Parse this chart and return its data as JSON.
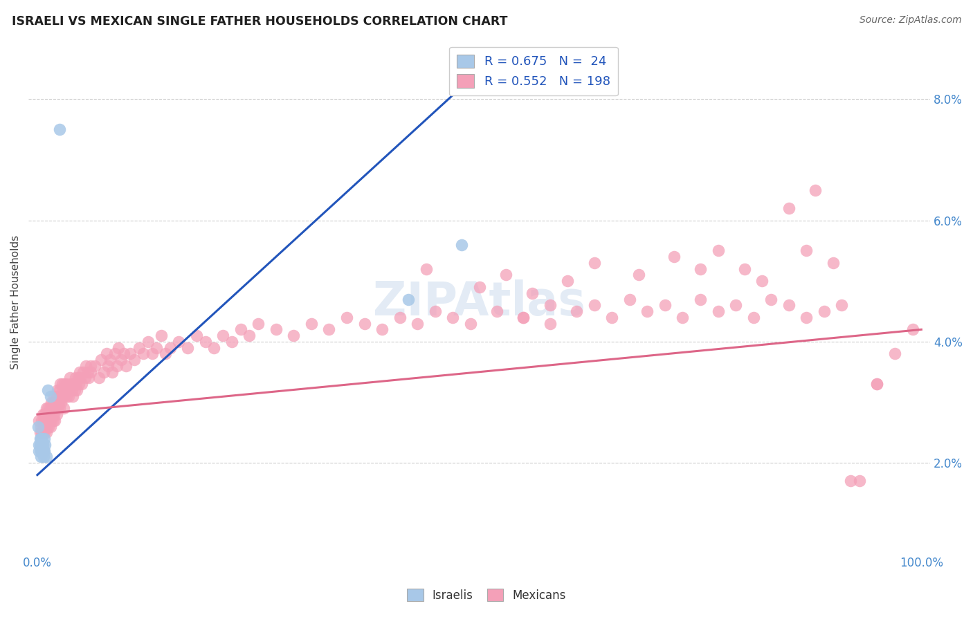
{
  "title": "ISRAELI VS MEXICAN SINGLE FATHER HOUSEHOLDS CORRELATION CHART",
  "source": "Source: ZipAtlas.com",
  "ylabel": "Single Father Households",
  "watermark": "ZIPAtlas",
  "israeli_color": "#a8c8e8",
  "mexican_color": "#f4a0b8",
  "israeli_line_color": "#2255bb",
  "mexican_line_color": "#dd6688",
  "title_color": "#202020",
  "axis_tick_color": "#4488cc",
  "xlim": [
    -0.01,
    1.01
  ],
  "ylim": [
    0.005,
    0.088
  ],
  "ytick_right_vals": [
    0.02,
    0.04,
    0.06,
    0.08
  ],
  "ytick_right_labels": [
    "2.0%",
    "4.0%",
    "6.0%",
    "8.0%"
  ],
  "xtick_vals": [
    0.0,
    0.1,
    0.2,
    0.3,
    0.4,
    0.5,
    0.6,
    0.7,
    0.8,
    0.9,
    1.0
  ],
  "xtick_labels": [
    "0.0%",
    "",
    "",
    "",
    "",
    "",
    "",
    "",
    "",
    "",
    "100.0%"
  ],
  "isr_x": [
    0.001,
    0.002,
    0.002,
    0.003,
    0.003,
    0.004,
    0.004,
    0.004,
    0.005,
    0.005,
    0.005,
    0.006,
    0.006,
    0.007,
    0.007,
    0.008,
    0.008,
    0.009,
    0.01,
    0.012,
    0.015,
    0.025,
    0.42,
    0.48
  ],
  "isr_y": [
    0.026,
    0.023,
    0.022,
    0.024,
    0.023,
    0.024,
    0.022,
    0.021,
    0.024,
    0.023,
    0.022,
    0.023,
    0.022,
    0.022,
    0.021,
    0.024,
    0.022,
    0.023,
    0.021,
    0.032,
    0.031,
    0.075,
    0.047,
    0.056
  ],
  "isr_trend_x": [
    0.0,
    0.48
  ],
  "isr_trend_y": [
    0.018,
    0.082
  ],
  "mex_trend_x": [
    0.0,
    1.0
  ],
  "mex_trend_y": [
    0.028,
    0.042
  ],
  "mex_cluster1_x": [
    0.002,
    0.003,
    0.004,
    0.005,
    0.005,
    0.006,
    0.006,
    0.007,
    0.007,
    0.008,
    0.008,
    0.008,
    0.009,
    0.009,
    0.01,
    0.01,
    0.01,
    0.011,
    0.011,
    0.012,
    0.012,
    0.013,
    0.013,
    0.014,
    0.014,
    0.015,
    0.015,
    0.016,
    0.016,
    0.017,
    0.017,
    0.018,
    0.018,
    0.019,
    0.019,
    0.02,
    0.02,
    0.021,
    0.022,
    0.022,
    0.023,
    0.023,
    0.024,
    0.025,
    0.025,
    0.026,
    0.026,
    0.027,
    0.028,
    0.028,
    0.029,
    0.03,
    0.03,
    0.031,
    0.032,
    0.033,
    0.033,
    0.034,
    0.035,
    0.036,
    0.037,
    0.038,
    0.039,
    0.04,
    0.041,
    0.042,
    0.043,
    0.044,
    0.045,
    0.046,
    0.047,
    0.048,
    0.049,
    0.05,
    0.052,
    0.054,
    0.055,
    0.057,
    0.058,
    0.06
  ],
  "mex_cluster1_y": [
    0.027,
    0.025,
    0.026,
    0.025,
    0.027,
    0.025,
    0.028,
    0.026,
    0.027,
    0.025,
    0.026,
    0.028,
    0.026,
    0.028,
    0.025,
    0.027,
    0.029,
    0.026,
    0.028,
    0.027,
    0.029,
    0.026,
    0.028,
    0.027,
    0.029,
    0.026,
    0.028,
    0.027,
    0.03,
    0.028,
    0.029,
    0.027,
    0.03,
    0.028,
    0.031,
    0.027,
    0.03,
    0.029,
    0.028,
    0.031,
    0.029,
    0.032,
    0.03,
    0.029,
    0.032,
    0.031,
    0.033,
    0.03,
    0.031,
    0.033,
    0.032,
    0.029,
    0.031,
    0.033,
    0.032,
    0.031,
    0.033,
    0.032,
    0.031,
    0.032,
    0.034,
    0.033,
    0.032,
    0.031,
    0.033,
    0.032,
    0.034,
    0.033,
    0.032,
    0.034,
    0.033,
    0.035,
    0.034,
    0.033,
    0.035,
    0.034,
    0.036,
    0.035,
    0.034,
    0.036
  ],
  "mex_cluster2_x": [
    0.06,
    0.065,
    0.07,
    0.072,
    0.075,
    0.078,
    0.08,
    0.082,
    0.085,
    0.088,
    0.09,
    0.092,
    0.095,
    0.098,
    0.1,
    0.105,
    0.11,
    0.115,
    0.12,
    0.125,
    0.13,
    0.135,
    0.14,
    0.145,
    0.15,
    0.16,
    0.17,
    0.18,
    0.19,
    0.2,
    0.21,
    0.22,
    0.23,
    0.24,
    0.25,
    0.27,
    0.29,
    0.31,
    0.33,
    0.35,
    0.37,
    0.39,
    0.41,
    0.43,
    0.45,
    0.47,
    0.49,
    0.52,
    0.55,
    0.58
  ],
  "mex_cluster2_y": [
    0.035,
    0.036,
    0.034,
    0.037,
    0.035,
    0.038,
    0.036,
    0.037,
    0.035,
    0.038,
    0.036,
    0.039,
    0.037,
    0.038,
    0.036,
    0.038,
    0.037,
    0.039,
    0.038,
    0.04,
    0.038,
    0.039,
    0.041,
    0.038,
    0.039,
    0.04,
    0.039,
    0.041,
    0.04,
    0.039,
    0.041,
    0.04,
    0.042,
    0.041,
    0.043,
    0.042,
    0.041,
    0.043,
    0.042,
    0.044,
    0.043,
    0.042,
    0.044,
    0.043,
    0.045,
    0.044,
    0.043,
    0.045,
    0.044,
    0.046
  ],
  "mex_cluster3_x": [
    0.55,
    0.58,
    0.61,
    0.63,
    0.65,
    0.67,
    0.69,
    0.71,
    0.73,
    0.75,
    0.77,
    0.79,
    0.81,
    0.83,
    0.85,
    0.87,
    0.89,
    0.91,
    0.93,
    0.95,
    0.97,
    0.99
  ],
  "mex_cluster3_y": [
    0.044,
    0.043,
    0.045,
    0.046,
    0.044,
    0.047,
    0.045,
    0.046,
    0.044,
    0.047,
    0.045,
    0.046,
    0.044,
    0.047,
    0.046,
    0.044,
    0.045,
    0.046,
    0.017,
    0.033,
    0.038,
    0.042
  ],
  "mex_outliers_x": [
    0.44,
    0.5,
    0.53,
    0.56,
    0.6,
    0.63,
    0.68,
    0.72,
    0.75,
    0.77,
    0.8,
    0.82,
    0.85,
    0.87,
    0.88,
    0.9,
    0.92,
    0.95
  ],
  "mex_outliers_y": [
    0.052,
    0.049,
    0.051,
    0.048,
    0.05,
    0.053,
    0.051,
    0.054,
    0.052,
    0.055,
    0.052,
    0.05,
    0.062,
    0.055,
    0.065,
    0.053,
    0.017,
    0.033
  ]
}
